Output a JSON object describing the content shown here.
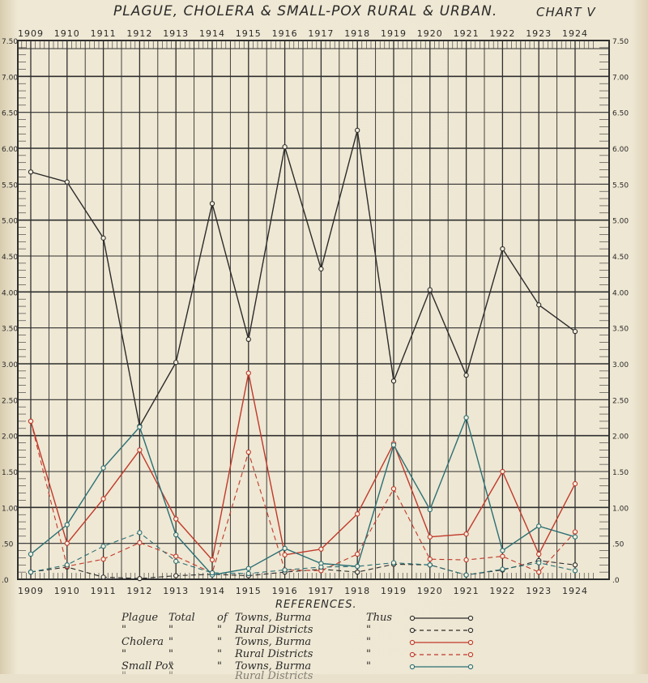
{
  "header": {
    "title": "PLAGUE, CHOLERA & SMALL-POX RURAL & URBAN.",
    "chart_id": "CHART V"
  },
  "colors": {
    "plague": "#2b2b2b",
    "cholera": "#c0392b",
    "smallpox": "#2a6f74",
    "grid": "#2f2f2f"
  },
  "legend": {
    "title": "REFERENCES.",
    "rows": [
      {
        "disease": "Plague",
        "total": "Total",
        "of": "of",
        "place": "Towns, Burma",
        "thus": "Thus",
        "series": 0
      },
      {
        "disease": "\"",
        "total": "\"",
        "of": "\"",
        "place": "Rural Districts",
        "thus": "\"",
        "series": 1
      },
      {
        "disease": "Cholera",
        "total": "\"",
        "of": "\"",
        "place": "Towns, Burma",
        "thus": "\"",
        "series": 2
      },
      {
        "disease": "\"",
        "total": "\"",
        "of": "\"",
        "place": "Rural Districts",
        "thus": "\"",
        "series": 3
      },
      {
        "disease": "Small Pox",
        "total": "\"",
        "of": "\"",
        "place": "Towns, Burma",
        "thus": "\"",
        "series": 4
      },
      {
        "disease": "\"",
        "total": "\"",
        "of": "",
        "place": "Rural Districts",
        "thus": "",
        "series": 5
      }
    ]
  },
  "chart_data": {
    "type": "line",
    "title": "PLAGUE, CHOLERA & SMALL-POX RURAL & URBAN.",
    "xlabel": "",
    "ylabel": "",
    "categories": [
      "1909",
      "1910",
      "1911",
      "1912",
      "1913",
      "1914",
      "1915",
      "1916",
      "1917",
      "1918",
      "1919",
      "1920",
      "1921",
      "1922",
      "1923",
      "1924"
    ],
    "x_tick_labels": [
      "1909",
      "1910",
      "1911",
      "1912",
      "1913",
      "1914",
      "1915",
      "1916",
      "1917",
      "1918",
      "1919",
      "1920",
      "1921",
      "1922",
      "1923",
      "1924"
    ],
    "y_tick_labels_left": [
      ".0",
      ".50",
      "1.00",
      "1.50",
      "2.00",
      "2.50",
      "3.00",
      "3.50",
      "4.00",
      "4.50",
      "5.00",
      "5.50",
      "6.00",
      "6.50",
      "7.00",
      "7.50"
    ],
    "y_tick_labels_right": [
      ".0",
      ".50",
      "1.00",
      "1.50",
      "2.00",
      "2.50",
      "3.00",
      "3.50",
      "4.00",
      "4.50",
      "5.00",
      "5.50",
      "6.00",
      "6.50",
      "7.00",
      "7.50"
    ],
    "ylim": [
      0,
      7.5
    ],
    "grid": true,
    "series": [
      {
        "name": "Plague Total of Towns, Burma",
        "color": "#2b2b2b",
        "dash": false,
        "x": [
          1909,
          1910,
          1911,
          1912,
          1913,
          1914,
          1915,
          1916,
          1917,
          1918,
          1919,
          1920,
          1921,
          1922,
          1923,
          1924
        ],
        "values": [
          5.67,
          5.53,
          4.75,
          2.13,
          3.02,
          5.23,
          3.34,
          6.02,
          4.32,
          6.25,
          2.76,
          4.03,
          2.84,
          4.6,
          3.82,
          3.45
        ]
      },
      {
        "name": "Plague Total of Rural Districts",
        "color": "#2b2b2b",
        "dash": true,
        "x": [
          1909,
          1910,
          1911,
          1912,
          1913,
          1914,
          1915,
          1916,
          1917,
          1918,
          1919,
          1920,
          1921,
          1922,
          1923,
          1924
        ],
        "values": [
          0.1,
          0.17,
          0.03,
          0.01,
          0.05,
          0.07,
          0.05,
          0.1,
          0.14,
          0.1,
          0.21,
          0.2,
          0.06,
          0.13,
          0.26,
          0.2
        ]
      },
      {
        "name": "Cholera Total of Towns, Burma",
        "color": "#c0392b",
        "dash": false,
        "x": [
          1909,
          1910,
          1911,
          1912,
          1913,
          1914,
          1915,
          1916,
          1917,
          1918,
          1919,
          1920,
          1921,
          1922,
          1923,
          1924
        ],
        "values": [
          2.2,
          0.5,
          1.12,
          1.8,
          0.84,
          0.27,
          2.87,
          0.34,
          0.42,
          0.91,
          1.89,
          0.59,
          0.63,
          1.5,
          0.35,
          1.33
        ]
      },
      {
        "name": "Cholera Total of Rural Districts",
        "color": "#c0392b",
        "dash": true,
        "x": [
          1909,
          1910,
          1911,
          1912,
          1913,
          1914,
          1915,
          1916,
          1917,
          1918,
          1919,
          1920,
          1921,
          1922,
          1923,
          1924
        ],
        "values": [
          2.2,
          0.18,
          0.28,
          0.51,
          0.32,
          0.09,
          1.77,
          0.13,
          0.12,
          0.35,
          1.26,
          0.28,
          0.27,
          0.32,
          0.1,
          0.66
        ]
      },
      {
        "name": "Small Pox Total of Towns, Burma",
        "color": "#2a6f74",
        "dash": false,
        "x": [
          1909,
          1910,
          1911,
          1912,
          1913,
          1914,
          1915,
          1916,
          1917,
          1918,
          1919,
          1920,
          1921,
          1922,
          1923,
          1924
        ],
        "values": [
          0.35,
          0.76,
          1.55,
          2.12,
          0.62,
          0.06,
          0.15,
          0.43,
          0.22,
          0.18,
          1.87,
          0.97,
          2.25,
          0.4,
          0.74,
          0.59
        ]
      },
      {
        "name": "Small Pox Total of Rural Districts",
        "color": "#2a6f74",
        "dash": true,
        "x": [
          1909,
          1910,
          1911,
          1912,
          1913,
          1914,
          1915,
          1916,
          1917,
          1918,
          1919,
          1920,
          1921,
          1922,
          1923,
          1924
        ],
        "values": [
          0.1,
          0.2,
          0.46,
          0.65,
          0.25,
          0.09,
          0.08,
          0.13,
          0.17,
          0.18,
          0.23,
          0.2,
          0.06,
          0.14,
          0.23,
          0.12
        ]
      }
    ]
  }
}
